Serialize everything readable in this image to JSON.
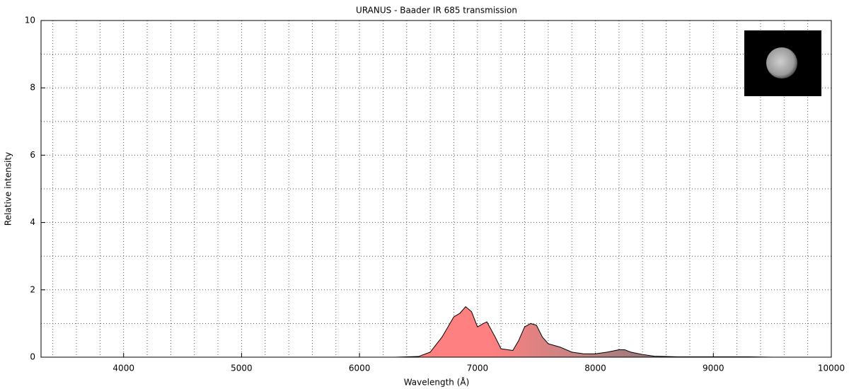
{
  "chart_data": {
    "type": "area",
    "title": "URANUS - Baader IR 685 transmission",
    "xlabel": "Wavelength (Å)",
    "ylabel": "Relative intensity",
    "x": [
      6300,
      6500,
      6600,
      6700,
      6800,
      6850,
      6900,
      6950,
      7000,
      7050,
      7080,
      7150,
      7200,
      7300,
      7350,
      7400,
      7450,
      7500,
      7550,
      7600,
      7700,
      7800,
      7900,
      8000,
      8100,
      8200,
      8250,
      8300,
      8400,
      8500,
      8700,
      9000,
      9300,
      9500
    ],
    "values": [
      0,
      0.02,
      0.15,
      0.6,
      1.2,
      1.3,
      1.5,
      1.35,
      0.9,
      1.0,
      1.05,
      0.6,
      0.25,
      0.2,
      0.5,
      0.9,
      1.0,
      0.95,
      0.6,
      0.4,
      0.3,
      0.15,
      0.1,
      0.1,
      0.15,
      0.22,
      0.22,
      0.15,
      0.08,
      0.03,
      0.01,
      0.01,
      0.01,
      0
    ],
    "fill_colors": [
      "#ff8080",
      "#ff8080",
      "#c08484",
      "#8a7272",
      "#6e6464"
    ],
    "line_color": "#000000",
    "xlim": [
      3300,
      10000
    ],
    "ylim": [
      0,
      10
    ],
    "xticks": [
      4000,
      5000,
      6000,
      7000,
      8000,
      9000,
      10000
    ],
    "yticks": [
      0,
      2,
      4,
      6,
      8,
      10
    ],
    "x_minor_ticks": [
      3400,
      3600,
      3800,
      4200,
      4400,
      4600,
      4800,
      5200,
      5400,
      5600,
      5800,
      6200,
      6400,
      6600,
      6800,
      7200,
      7400,
      7600,
      7800,
      8200,
      8400,
      8600,
      8800,
      9200,
      9400,
      9600,
      9800
    ],
    "y_minor_ticks": [
      1,
      3,
      5,
      7,
      9
    ],
    "grid": true
  }
}
